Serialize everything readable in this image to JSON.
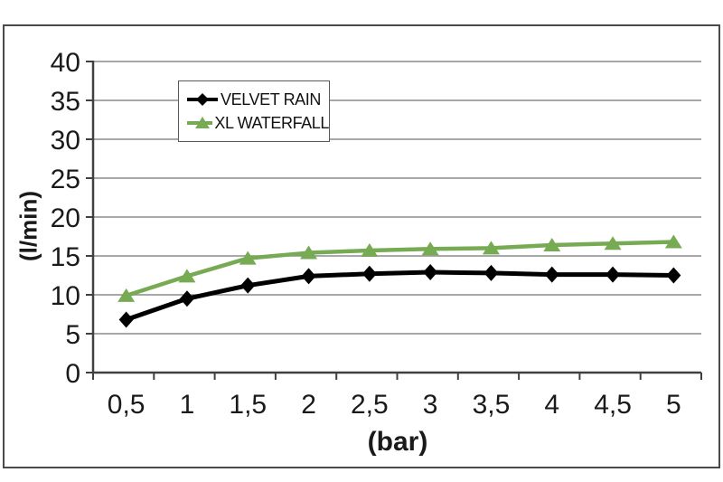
{
  "chart_data": {
    "type": "line",
    "title": "",
    "xlabel": "(bar)",
    "ylabel": "(l/min)",
    "x": [
      0.5,
      1,
      1.5,
      2,
      2.5,
      3,
      3.5,
      4,
      4.5,
      5
    ],
    "x_tick_labels": [
      "0,5",
      "1",
      "1,5",
      "2",
      "2,5",
      "3",
      "3,5",
      "4",
      "4,5",
      "5"
    ],
    "y_ticks": [
      0,
      5,
      10,
      15,
      20,
      25,
      30,
      35,
      40
    ],
    "ylim": [
      0,
      40
    ],
    "grid": true,
    "legend_position": "top-left-inside",
    "series": [
      {
        "name": "VELVET RAIN",
        "color": "#000000",
        "marker": "diamond",
        "values": [
          6.8,
          9.5,
          11.2,
          12.4,
          12.7,
          12.9,
          12.8,
          12.6,
          12.6,
          12.5
        ]
      },
      {
        "name": "XL WATERFALL",
        "color": "#76ab53",
        "marker": "triangle",
        "values": [
          9.9,
          12.4,
          14.7,
          15.4,
          15.7,
          15.9,
          16.0,
          16.4,
          16.6,
          16.8
        ]
      }
    ],
    "colors": {
      "grid": "#8c8c8c",
      "axis": "#404040",
      "frame_border": "#4a4a4a",
      "text": "#1a1a1a"
    }
  }
}
